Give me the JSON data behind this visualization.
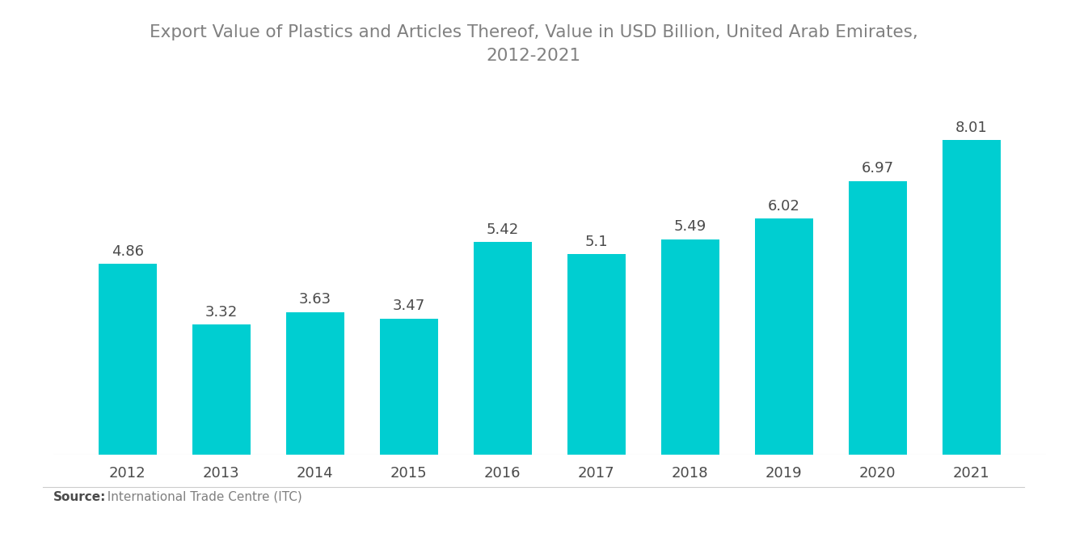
{
  "title_line1": "Export Value of Plastics and Articles Thereof, Value in USD Billion, United Arab Emirates,",
  "title_line2": "2012-2021",
  "years": [
    "2012",
    "2013",
    "2014",
    "2015",
    "2016",
    "2017",
    "2018",
    "2019",
    "2020",
    "2021"
  ],
  "values": [
    4.86,
    3.32,
    3.63,
    3.47,
    5.42,
    5.1,
    5.49,
    6.02,
    6.97,
    8.01
  ],
  "bar_color": "#00CED1",
  "label_color": "#4a4a4a",
  "title_color": "#808080",
  "source_bold": "Source:",
  "source_normal": "  International Trade Centre (ITC)",
  "background_color": "#ffffff",
  "bar_width": 0.62,
  "ylim": [
    0,
    9.8
  ],
  "title_fontsize": 15.5,
  "label_fontsize": 13,
  "tick_fontsize": 13,
  "source_fontsize": 11,
  "sep_line_color": "#cccccc"
}
